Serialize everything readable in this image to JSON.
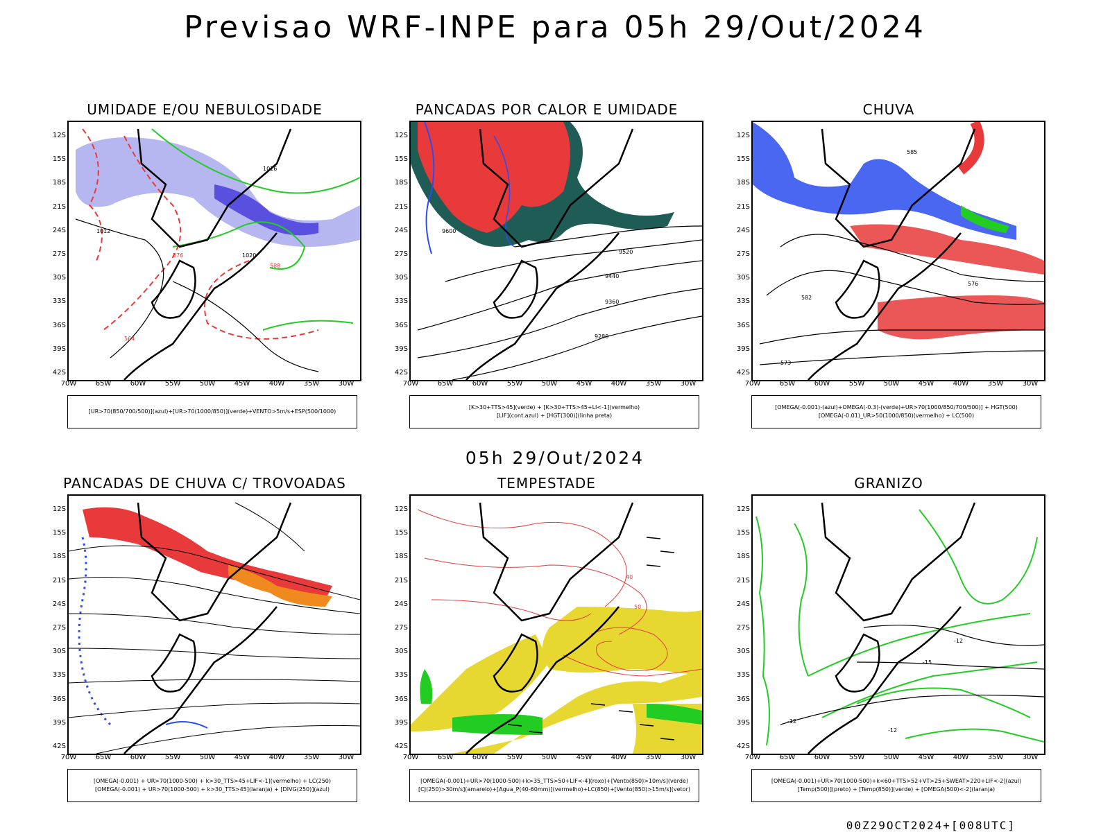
{
  "title": "Previsao WRF-INPE  para 05h 29/Out/2024",
  "middle_title": "05h 29/Out/2024",
  "footer": "00Z29OCT2024+[008UTC]",
  "lat_labels": [
    "12S",
    "15S",
    "18S",
    "21S",
    "24S",
    "27S",
    "30S",
    "33S",
    "36S",
    "39S",
    "42S"
  ],
  "lon_labels": [
    "70W",
    "65W",
    "60W",
    "55W",
    "50W",
    "45W",
    "40W",
    "35W",
    "30W"
  ],
  "colors": {
    "red": "#e83a3a",
    "blue": "#2a4cf0",
    "green": "#22cc22",
    "dark_green": "#1f5c55",
    "orange": "#f08a1e",
    "yellow": "#e6d830",
    "purple_light": "#b6b6f0",
    "purple_dark": "#5a50e0"
  },
  "panels": [
    {
      "title": "UMIDADE E/OU NEBULOSIDADE",
      "legend_lines": [
        "[UR>70(850/700/500)](azul)+[UR>70(1000/850)](verde)+VENTO>5m/s+ESP(500/1000)"
      ],
      "contour_labels": [
        "1012",
        "1016",
        "1020",
        "576",
        "564",
        "588"
      ]
    },
    {
      "title": "PANCADAS POR CALOR E UMIDADE",
      "legend_lines": [
        "[K>30+TTS>45](verde)  +  [K>30+TTS>45+LI<-1](vermelho)",
        "[LIF](cont.azul)  +  [HGT(300)](linha preta)"
      ],
      "contour_labels": [
        "9600",
        "9520",
        "9440",
        "9360",
        "9280"
      ]
    },
    {
      "title": "CHUVA",
      "legend_lines": [
        "[OMEGA(-0.001)-(azul)+OMEGA(-0.3)-(verde)+UR>70(1000/850/700/500)]  +  HGT(500)",
        "[OMEGA(-0.01)_UR>50(1000/850)(vermelho)  +  LC(500)"
      ],
      "contour_labels": [
        "585",
        "576",
        "573",
        "582"
      ]
    },
    {
      "title": "PANCADAS DE CHUVA C/ TROVOADAS",
      "legend_lines": [
        "[OMEGA(-0.001)  +  UR>70(1000-500)  +  k>30_TTS>45+LIF<-1](vermelho)  +  LC(250)",
        "[OMEGA(-0.001)  +  UR>70(1000-500)  +  k>30_TTS>45](laranja)  +  [DIVG(250)](azul)"
      ],
      "contour_labels": []
    },
    {
      "title": "TEMPESTADE",
      "legend_lines": [
        "[OMEGA(-0.001)+UR>70(1000-500)+k>35_TTS>50+LIF<-4](roxo)+[Vento(850)>10m/s](verde)",
        "[CJ(250)>30m/s](amarelo)+[Agua_P(40-60mm)](vermelho)+LC(850)+[Vento(850)>15m/s](vetor)"
      ],
      "contour_labels": [
        "40",
        "50"
      ]
    },
    {
      "title": "GRANIZO",
      "legend_lines": [
        "[OMEGA(-0.001)+UR>70(1000-500)+k<60+TTS>52+VT>25+SWEAT>220+LIF<-2](azul)",
        "[Temp(500)](preto)  +  [Temp(850)](verde)  +  [OMEGA(500)<-2](laranja)"
      ],
      "contour_labels": [
        "-12",
        "-15",
        "-12",
        "-12"
      ]
    }
  ]
}
